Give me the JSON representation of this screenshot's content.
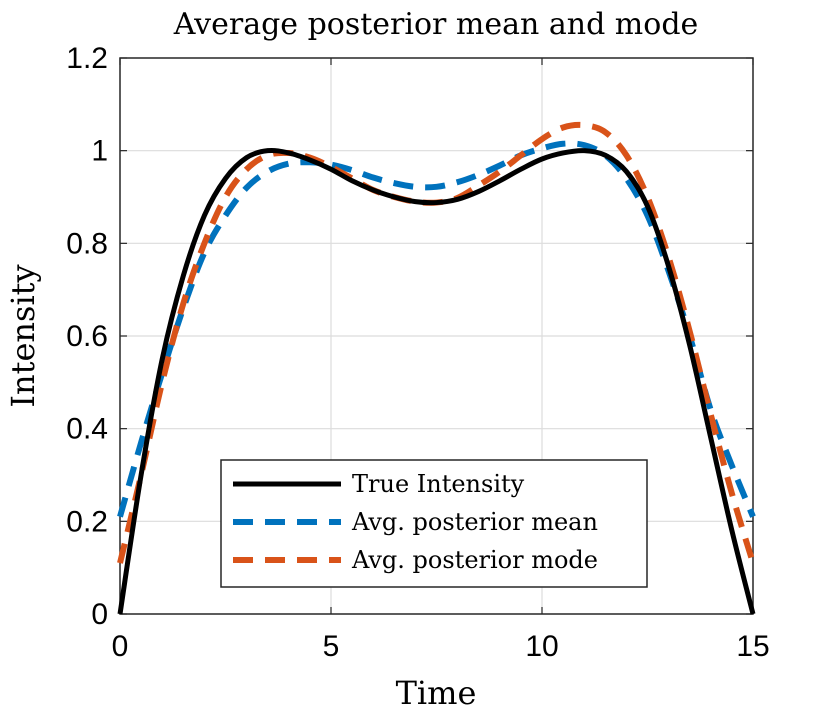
{
  "chart_data": {
    "type": "line",
    "title": "Average posterior mean and mode",
    "xlabel": "Time",
    "ylabel": "Intensity",
    "xlim": [
      0,
      15
    ],
    "ylim": [
      0,
      1.2
    ],
    "xticks": [
      0,
      5,
      10,
      15
    ],
    "xtick_labels": [
      "0",
      "5",
      "10",
      "15"
    ],
    "yticks": [
      0,
      0.2,
      0.4,
      0.6,
      0.8,
      1.0,
      1.2
    ],
    "ytick_labels": [
      "0",
      "0.2",
      "0.4",
      "0.6",
      "0.8",
      "1",
      "1.2"
    ],
    "grid": true,
    "legend_position": "bottom-center",
    "series": [
      {
        "name": "True Intensity",
        "color": "#000000",
        "style": "solid",
        "x": [
          0,
          0.5,
          1,
          1.5,
          2,
          2.5,
          3,
          3.5,
          4,
          4.5,
          5,
          5.5,
          6,
          6.5,
          7,
          7.5,
          8,
          8.5,
          9,
          9.5,
          10,
          10.5,
          11,
          11.5,
          12,
          12.5,
          13,
          13.5,
          14,
          14.5,
          15
        ],
        "y": [
          0.0,
          0.3,
          0.55,
          0.73,
          0.86,
          0.94,
          0.985,
          1.0,
          0.995,
          0.98,
          0.96,
          0.935,
          0.915,
          0.9,
          0.89,
          0.888,
          0.895,
          0.912,
          0.935,
          0.96,
          0.982,
          0.995,
          1.0,
          0.99,
          0.955,
          0.88,
          0.75,
          0.58,
          0.38,
          0.18,
          0.0
        ]
      },
      {
        "name": "Avg. posterior mean",
        "color": "#0072BD",
        "style": "dashed",
        "x": [
          0,
          0.5,
          1,
          1.5,
          2,
          2.5,
          3,
          3.5,
          4,
          4.5,
          5,
          5.5,
          6,
          6.5,
          7,
          7.5,
          8,
          8.5,
          9,
          9.5,
          10,
          10.5,
          11,
          11.5,
          12,
          12.5,
          13,
          13.5,
          14,
          14.5,
          15
        ],
        "y": [
          0.21,
          0.37,
          0.52,
          0.66,
          0.78,
          0.86,
          0.92,
          0.955,
          0.972,
          0.975,
          0.97,
          0.958,
          0.942,
          0.93,
          0.922,
          0.922,
          0.932,
          0.948,
          0.968,
          0.99,
          1.005,
          1.015,
          1.012,
          0.99,
          0.94,
          0.86,
          0.74,
          0.6,
          0.44,
          0.32,
          0.21
        ]
      },
      {
        "name": "Avg. posterior mode",
        "color": "#D95319",
        "style": "dashed",
        "x": [
          0,
          0.5,
          1,
          1.5,
          2,
          2.5,
          3,
          3.5,
          4,
          4.5,
          5,
          5.5,
          6,
          6.5,
          7,
          7.5,
          8,
          8.5,
          9,
          9.5,
          10,
          10.5,
          11,
          11.5,
          12,
          12.5,
          13,
          13.5,
          14,
          14.5,
          15
        ],
        "y": [
          0.11,
          0.3,
          0.5,
          0.67,
          0.8,
          0.9,
          0.96,
          0.99,
          0.995,
          0.985,
          0.965,
          0.94,
          0.915,
          0.9,
          0.89,
          0.888,
          0.898,
          0.925,
          0.955,
          0.99,
          1.025,
          1.05,
          1.055,
          1.04,
          0.99,
          0.9,
          0.77,
          0.61,
          0.43,
          0.26,
          0.11
        ]
      }
    ]
  }
}
